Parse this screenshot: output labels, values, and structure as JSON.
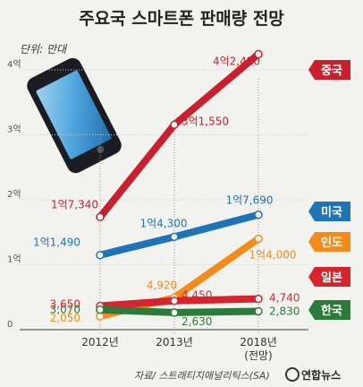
{
  "header": {
    "title": "주요국 스마트폰 판매량 전망",
    "unit": "단위: 만대"
  },
  "footer": {
    "source": "자료/ 스트래티지애널리틱스(SA)",
    "brand": "연합뉴스"
  },
  "chart_data": {
    "type": "line",
    "title": "주요국 스마트폰 판매량 전망",
    "unit_label": "단위: 만대",
    "x": [
      "2012년",
      "2013년",
      "2018년"
    ],
    "x_sub": [
      "",
      "",
      "(전망)"
    ],
    "ylim": [
      0,
      40000
    ],
    "y_ticks": [
      {
        "value": 0,
        "label": "0"
      },
      {
        "value": 10000,
        "label": "1억"
      },
      {
        "value": 20000,
        "label": "2억"
      },
      {
        "value": 30000,
        "label": "3억"
      },
      {
        "value": 40000,
        "label": "4억"
      }
    ],
    "series": [
      {
        "name": "중국",
        "color": "#c8202f",
        "values": [
          17340,
          31550,
          42420
        ],
        "labels": [
          "1억7,340",
          "3억1,550",
          "4억2,420"
        ]
      },
      {
        "name": "미국",
        "color": "#1f74b8",
        "values": [
          11490,
          14300,
          17690
        ],
        "labels": [
          "1억1,490",
          "1억4,300",
          "1억7,690"
        ]
      },
      {
        "name": "인도",
        "color": "#f28c1c",
        "values": [
          2050,
          4920,
          14000
        ],
        "labels": [
          "2,050",
          "4,920",
          "1억4,000"
        ]
      },
      {
        "name": "일본",
        "color": "#d6242e",
        "values": [
          3650,
          4450,
          4740
        ],
        "labels": [
          "3,650",
          "4,450",
          "4,740"
        ]
      },
      {
        "name": "한국",
        "color": "#2d7b3a",
        "values": [
          3070,
          2630,
          2830
        ],
        "labels": [
          "3,070",
          "2,630",
          "2,830"
        ]
      }
    ],
    "grid": true,
    "legend": "right"
  }
}
